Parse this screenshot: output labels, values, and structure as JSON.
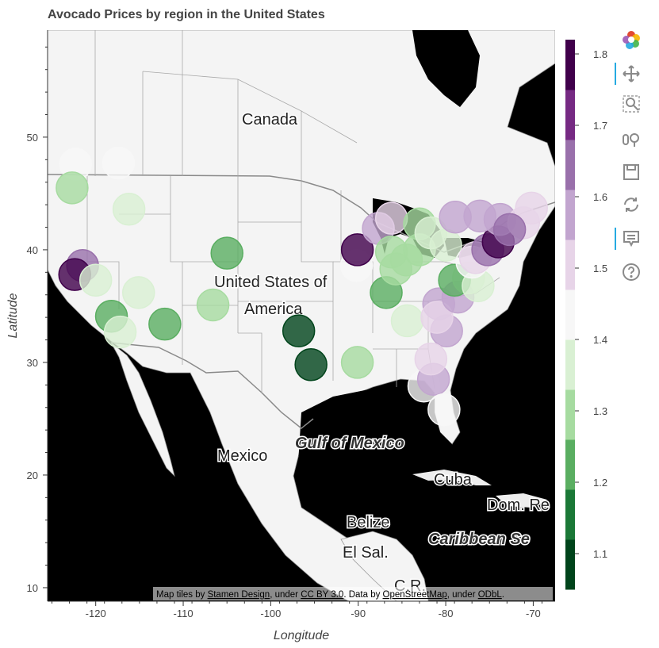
{
  "chart_data": {
    "type": "scatter",
    "title": "Avocado Prices by region in the United States",
    "xlabel": "Longitude",
    "ylabel": "Latitude",
    "xlim": [
      -125.5,
      -67.5
    ],
    "ylim": [
      8.8,
      59.5
    ],
    "x_ticks": [
      -120,
      -110,
      -100,
      -90,
      -80,
      -70
    ],
    "y_ticks": [
      10,
      20,
      30,
      40,
      50
    ],
    "grid": false,
    "colorbar": {
      "ticks": [
        1.1,
        1.2,
        1.3,
        1.4,
        1.5,
        1.6,
        1.7,
        1.8
      ],
      "range": [
        1.05,
        1.82
      ],
      "palette": [
        "#00441b",
        "#1b7837",
        "#5aae61",
        "#a6dba0",
        "#d9f0d3",
        "#f7f7f7",
        "#e7d4e8",
        "#c2a5cf",
        "#9970ab",
        "#762a83",
        "#40004b"
      ]
    },
    "series": [
      {
        "values": [
          {
            "x": -122.3,
            "y": 47.6,
            "v": 1.42
          },
          {
            "x": -117.4,
            "y": 47.7,
            "v": 1.41
          },
          {
            "x": -122.7,
            "y": 45.5,
            "v": 1.32
          },
          {
            "x": -116.2,
            "y": 43.6,
            "v": 1.34
          },
          {
            "x": -121.5,
            "y": 38.6,
            "v": 1.68
          },
          {
            "x": -122.4,
            "y": 37.8,
            "v": 1.79
          },
          {
            "x": -120.0,
            "y": 37.3,
            "v": 1.36
          },
          {
            "x": -115.1,
            "y": 36.2,
            "v": 1.38
          },
          {
            "x": -118.2,
            "y": 34.1,
            "v": 1.24
          },
          {
            "x": -117.2,
            "y": 32.7,
            "v": 1.36
          },
          {
            "x": -112.1,
            "y": 33.4,
            "v": 1.22
          },
          {
            "x": -106.6,
            "y": 35.1,
            "v": 1.32
          },
          {
            "x": -105.0,
            "y": 39.7,
            "v": 1.23
          },
          {
            "x": -96.8,
            "y": 32.8,
            "v": 1.08
          },
          {
            "x": -95.4,
            "y": 29.8,
            "v": 1.07
          },
          {
            "x": -90.1,
            "y": 30.0,
            "v": 1.31
          },
          {
            "x": -90.2,
            "y": 38.6,
            "v": 1.42
          },
          {
            "x": -90.1,
            "y": 40.0,
            "v": 1.76
          },
          {
            "x": -87.7,
            "y": 41.9,
            "v": 1.57
          },
          {
            "x": -86.2,
            "y": 42.8,
            "v": 1.53
          },
          {
            "x": -86.8,
            "y": 36.2,
            "v": 1.24
          },
          {
            "x": -86.2,
            "y": 39.8,
            "v": 1.3
          },
          {
            "x": -84.5,
            "y": 39.1,
            "v": 1.29
          },
          {
            "x": -83.0,
            "y": 40.0,
            "v": 1.27
          },
          {
            "x": -83.0,
            "y": 42.3,
            "v": 1.27
          },
          {
            "x": -81.7,
            "y": 41.5,
            "v": 1.33
          },
          {
            "x": -85.7,
            "y": 38.3,
            "v": 1.32
          },
          {
            "x": -84.4,
            "y": 33.7,
            "v": 1.36
          },
          {
            "x": -80.0,
            "y": 40.4,
            "v": 1.36
          },
          {
            "x": -80.8,
            "y": 35.2,
            "v": 1.55
          },
          {
            "x": -79.9,
            "y": 32.8,
            "v": 1.55
          },
          {
            "x": -81.0,
            "y": 34.0,
            "v": 1.52
          },
          {
            "x": -78.6,
            "y": 35.8,
            "v": 1.58
          },
          {
            "x": -77.4,
            "y": 37.5,
            "v": 1.36
          },
          {
            "x": -79.0,
            "y": 37.3,
            "v": 1.25
          },
          {
            "x": -76.3,
            "y": 36.8,
            "v": 1.34
          },
          {
            "x": -77.0,
            "y": 38.9,
            "v": 1.46
          },
          {
            "x": -76.6,
            "y": 39.3,
            "v": 1.53
          },
          {
            "x": -75.2,
            "y": 40.0,
            "v": 1.67
          },
          {
            "x": -74.0,
            "y": 40.7,
            "v": 1.75
          },
          {
            "x": -73.8,
            "y": 42.7,
            "v": 1.54
          },
          {
            "x": -71.1,
            "y": 42.4,
            "v": 1.53
          },
          {
            "x": -70.2,
            "y": 43.7,
            "v": 1.5
          },
          {
            "x": -76.1,
            "y": 43.0,
            "v": 1.55
          },
          {
            "x": -78.9,
            "y": 42.9,
            "v": 1.55
          },
          {
            "x": -72.7,
            "y": 41.8,
            "v": 1.62
          },
          {
            "x": -82.5,
            "y": 27.9,
            "v": 1.43
          },
          {
            "x": -81.4,
            "y": 28.5,
            "v": 1.55
          },
          {
            "x": -80.2,
            "y": 25.8,
            "v": 1.42
          },
          {
            "x": -81.7,
            "y": 30.3,
            "v": 1.51
          }
        ]
      }
    ]
  },
  "map_labels": {
    "canada": "Canada",
    "usa_line1": "United States of",
    "usa_line2": "America",
    "mexico": "Mexico",
    "gulf": "Gulf of Mexico",
    "cuba": "Cuba",
    "dom": "Dom. Re",
    "belize": "Belize",
    "elsal": "El Sal.",
    "caribbean": "Caribbean  Se",
    "cr": "C.R."
  },
  "attribution": {
    "prefix": "Map tiles by ",
    "stamen": "Stamen Design",
    "mid1": ", under ",
    "ccby": "CC BY 3.0",
    "mid2": ". Data by ",
    "osm": "OpenStreetMap",
    "mid3": ", under ",
    "odbl": "ODbL",
    "end": "."
  },
  "toolbar": {
    "icons": [
      "bokeh-logo-icon",
      "pan-icon",
      "box-zoom-icon",
      "wheel-zoom-icon",
      "save-icon",
      "reset-icon",
      "hover-icon",
      "help-icon"
    ]
  }
}
